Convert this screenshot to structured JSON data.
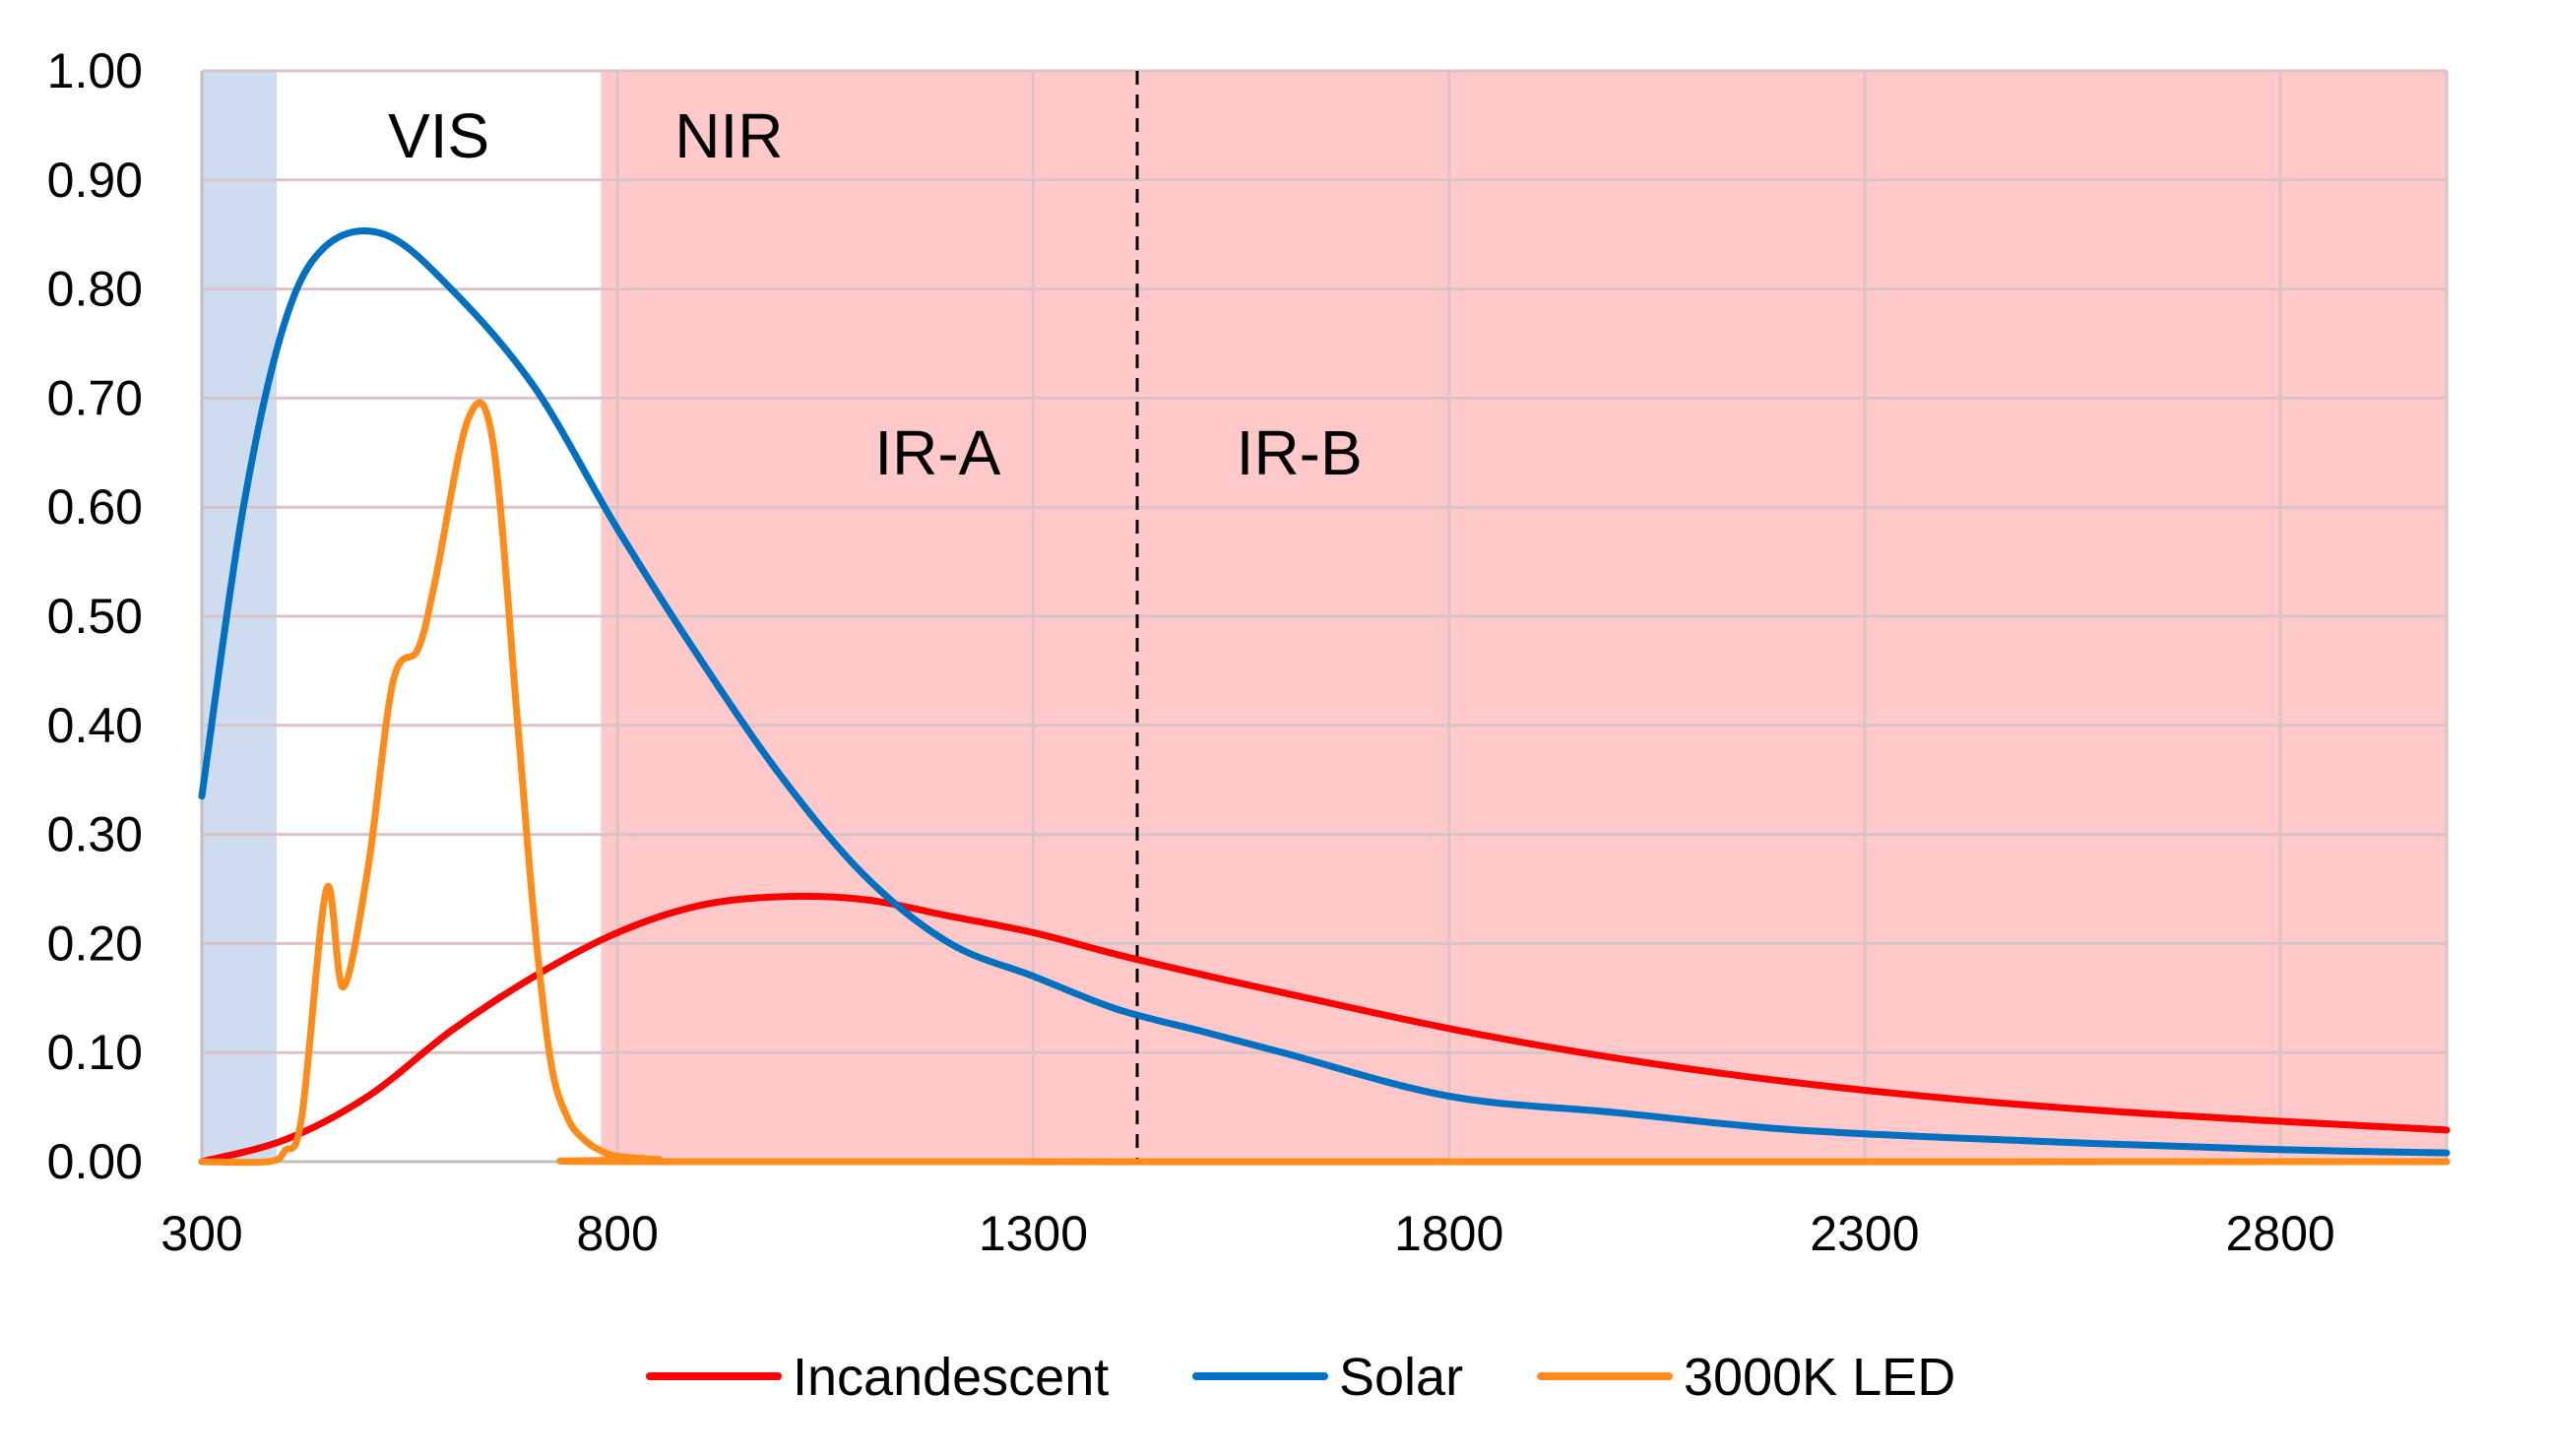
{
  "chart_data": {
    "type": "line",
    "title": "",
    "xlabel": "",
    "ylabel": "",
    "xlim": [
      300,
      3000
    ],
    "ylim": [
      0,
      1.0
    ],
    "grid": true,
    "legend_position": "bottom",
    "x_ticks": [
      "300",
      "800",
      "1300",
      "1800",
      "2300",
      "2800"
    ],
    "y_ticks": [
      "0.00",
      "0.10",
      "0.20",
      "0.30",
      "0.40",
      "0.50",
      "0.60",
      "0.70",
      "0.80",
      "0.90",
      "1.00"
    ],
    "regions": [
      {
        "label": "",
        "x_start": 300,
        "x_end": 390,
        "color": "#cfdcf0"
      },
      {
        "label": "VIS",
        "x_start": 390,
        "x_end": 780,
        "color": "#ffffff"
      },
      {
        "label": "NIR",
        "x_start": 780,
        "x_end": 3000,
        "color": "#ffc9c9"
      }
    ],
    "annotations": [
      {
        "text": "IR-A",
        "x": 1185,
        "y": 0.65
      },
      {
        "text": "IR-B",
        "x": 1620,
        "y": 0.65
      }
    ],
    "divider": {
      "x": 1425,
      "style": "dashed"
    },
    "series": [
      {
        "name": "Incandescent",
        "color": "#ff0000",
        "x": [
          300,
          400,
          500,
          600,
          700,
          800,
          900,
          1000,
          1100,
          1200,
          1300,
          1400,
          1500,
          1600,
          1800,
          2000,
          2200,
          2400,
          2600,
          2800,
          3000
        ],
        "y": [
          0.0,
          0.02,
          0.06,
          0.12,
          0.17,
          0.21,
          0.235,
          0.243,
          0.24,
          0.225,
          0.21,
          0.19,
          0.172,
          0.155,
          0.122,
          0.095,
          0.074,
          0.058,
          0.046,
          0.037,
          0.029
        ]
      },
      {
        "name": "Solar",
        "color": "#0070c0",
        "x": [
          300,
          350,
          400,
          450,
          520,
          600,
          700,
          800,
          900,
          1000,
          1100,
          1200,
          1300,
          1400,
          1500,
          1600,
          1800,
          2000,
          2200,
          2400,
          2600,
          2800,
          3000
        ],
        "y": [
          0.335,
          0.6,
          0.77,
          0.84,
          0.85,
          0.8,
          0.71,
          0.58,
          0.46,
          0.35,
          0.26,
          0.2,
          0.17,
          0.14,
          0.12,
          0.1,
          0.06,
          0.045,
          0.03,
          0.022,
          0.016,
          0.011,
          0.008
        ]
      },
      {
        "name": "3000K LED",
        "color": "#ff8c1a",
        "x": [
          300,
          380,
          400,
          420,
          450,
          470,
          500,
          530,
          560,
          580,
          620,
          650,
          680,
          700,
          720,
          740,
          760,
          780,
          800,
          850,
          900,
          3000
        ],
        "y": [
          0.0,
          0.0,
          0.01,
          0.04,
          0.25,
          0.16,
          0.27,
          0.44,
          0.47,
          0.53,
          0.68,
          0.66,
          0.4,
          0.22,
          0.09,
          0.04,
          0.02,
          0.01,
          0.005,
          0.002,
          0.0,
          0.0
        ]
      }
    ]
  }
}
